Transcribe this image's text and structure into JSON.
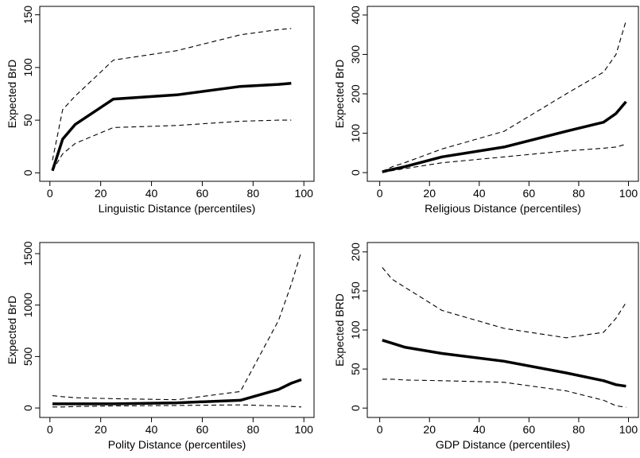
{
  "chart_data": [
    {
      "type": "line",
      "xlabel": "Linguistic Distance (percentiles)",
      "ylabel": "Expected BrD",
      "x": [
        1,
        5,
        10,
        25,
        50,
        75,
        90,
        95
      ],
      "series": [
        {
          "color": "#000000",
          "linestyle": "solid",
          "values": [
            2,
            32,
            46,
            70,
            74,
            82,
            84,
            85
          ]
        },
        {
          "color": "#000000",
          "linestyle": "dashed",
          "values": [
            12,
            60,
            73,
            107,
            116,
            131,
            136,
            137
          ]
        },
        {
          "color": "#000000",
          "linestyle": "dashed",
          "values": [
            2,
            18,
            28,
            43,
            45,
            49,
            50,
            50
          ]
        }
      ],
      "xlim": [
        -4,
        104
      ],
      "xticks": [
        0,
        20,
        40,
        60,
        80,
        100
      ],
      "ylim": [
        -8,
        158
      ],
      "yticks": [
        0,
        50,
        100,
        150
      ]
    },
    {
      "type": "line",
      "xlabel": "Religious Distance (percentiles)",
      "ylabel": "Expected BrD",
      "x": [
        1,
        5,
        10,
        25,
        50,
        75,
        90,
        95,
        99
      ],
      "series": [
        {
          "color": "#000000",
          "linestyle": "solid",
          "values": [
            2,
            8,
            15,
            40,
            65,
            105,
            128,
            150,
            180
          ]
        },
        {
          "color": "#000000",
          "linestyle": "dashed",
          "values": [
            3,
            15,
            25,
            60,
            105,
            200,
            255,
            300,
            385
          ]
        },
        {
          "color": "#000000",
          "linestyle": "dashed",
          "values": [
            0,
            5,
            10,
            25,
            40,
            55,
            62,
            65,
            72
          ]
        }
      ],
      "xlim": [
        -5,
        104
      ],
      "xticks": [
        0,
        20,
        40,
        60,
        80,
        100
      ],
      "ylim": [
        -22,
        422
      ],
      "yticks": [
        0,
        100,
        200,
        300,
        400
      ]
    },
    {
      "type": "line",
      "xlabel": "Polity Distance (percentiles)",
      "ylabel": "Expected BrD",
      "x": [
        1,
        5,
        10,
        25,
        50,
        75,
        90,
        95,
        99
      ],
      "series": [
        {
          "color": "#000000",
          "linestyle": "solid",
          "values": [
            40,
            40,
            40,
            40,
            50,
            75,
            180,
            240,
            275
          ]
        },
        {
          "color": "#000000",
          "linestyle": "dashed",
          "values": [
            120,
            110,
            100,
            90,
            80,
            160,
            850,
            1200,
            1520
          ]
        },
        {
          "color": "#000000",
          "linestyle": "dashed",
          "values": [
            10,
            10,
            15,
            20,
            25,
            30,
            20,
            15,
            10
          ]
        }
      ],
      "xlim": [
        -4,
        104
      ],
      "xticks": [
        0,
        20,
        40,
        60,
        80,
        100
      ],
      "ylim": [
        -92,
        1608
      ],
      "yticks": [
        0,
        500,
        1000,
        1500
      ]
    },
    {
      "type": "line",
      "xlabel": "GDP Distance (percentiles)",
      "ylabel": "Expected BRD",
      "x": [
        1,
        5,
        10,
        25,
        50,
        75,
        90,
        95,
        99
      ],
      "series": [
        {
          "color": "#000000",
          "linestyle": "solid",
          "values": [
            87,
            83,
            78,
            70,
            60,
            45,
            35,
            30,
            28
          ]
        },
        {
          "color": "#000000",
          "linestyle": "dashed",
          "values": [
            180,
            165,
            155,
            125,
            102,
            90,
            97,
            115,
            135
          ]
        },
        {
          "color": "#000000",
          "linestyle": "dashed",
          "values": [
            37,
            37,
            36,
            35,
            33,
            22,
            10,
            3,
            1
          ]
        }
      ],
      "xlim": [
        -5,
        104
      ],
      "xticks": [
        0,
        20,
        40,
        60,
        80,
        100
      ],
      "ylim": [
        -12,
        212
      ],
      "yticks": [
        0,
        50,
        100,
        150,
        200
      ]
    }
  ]
}
